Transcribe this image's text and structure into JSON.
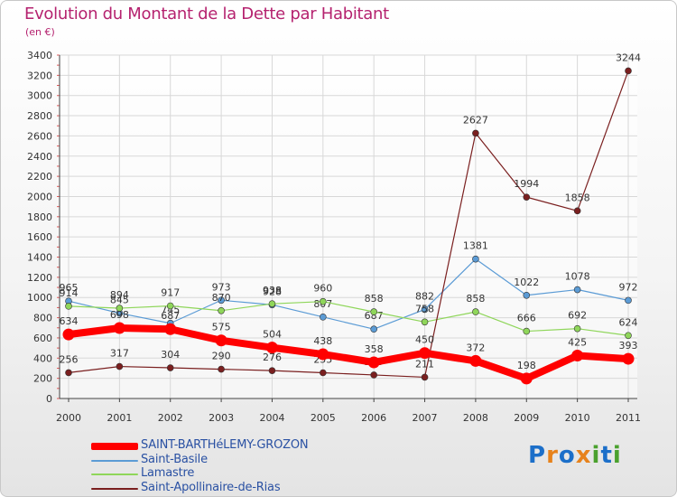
{
  "header": {
    "title": "Evolution du Montant de la Dette par Habitant",
    "unit": "(en €)"
  },
  "logo": {
    "text": "Proxiti"
  },
  "chart_data": {
    "type": "line",
    "title": "Evolution du Montant de la Dette par Habitant",
    "ylabel": "(en €)",
    "xlabel": "",
    "x": [
      "2000",
      "2001",
      "2002",
      "2003",
      "2004",
      "2005",
      "2006",
      "2007",
      "2008",
      "2009",
      "2010",
      "2011"
    ],
    "ylim": [
      0,
      3400
    ],
    "yticks": [
      0,
      200,
      400,
      600,
      800,
      1000,
      1200,
      1400,
      1600,
      1800,
      2000,
      2200,
      2400,
      2600,
      2800,
      3000,
      3200,
      3400
    ],
    "grid": true,
    "legend_position": "bottom-left",
    "series": [
      {
        "name": "SAINT-BARTHéLEMY-GROZON",
        "color": "#ff0000",
        "values": [
          634,
          698,
          687,
          575,
          504,
          438,
          358,
          450,
          372,
          198,
          425,
          393
        ]
      },
      {
        "name": "Saint-Basile",
        "color": "#5b9bd5",
        "values": [
          965,
          845,
          745,
          973,
          928,
          807,
          687,
          882,
          1381,
          1022,
          1078,
          972
        ]
      },
      {
        "name": "Lamastre",
        "color": "#8fd65a",
        "values": [
          914,
          894,
          917,
          870,
          938,
          960,
          858,
          758,
          858,
          666,
          692,
          624
        ]
      },
      {
        "name": "Saint-Apollinaire-de-Rias",
        "color": "#7a1f1f",
        "values": [
          256,
          317,
          304,
          290,
          276,
          255,
          233,
          211,
          2627,
          1994,
          1858,
          3244
        ]
      }
    ]
  }
}
